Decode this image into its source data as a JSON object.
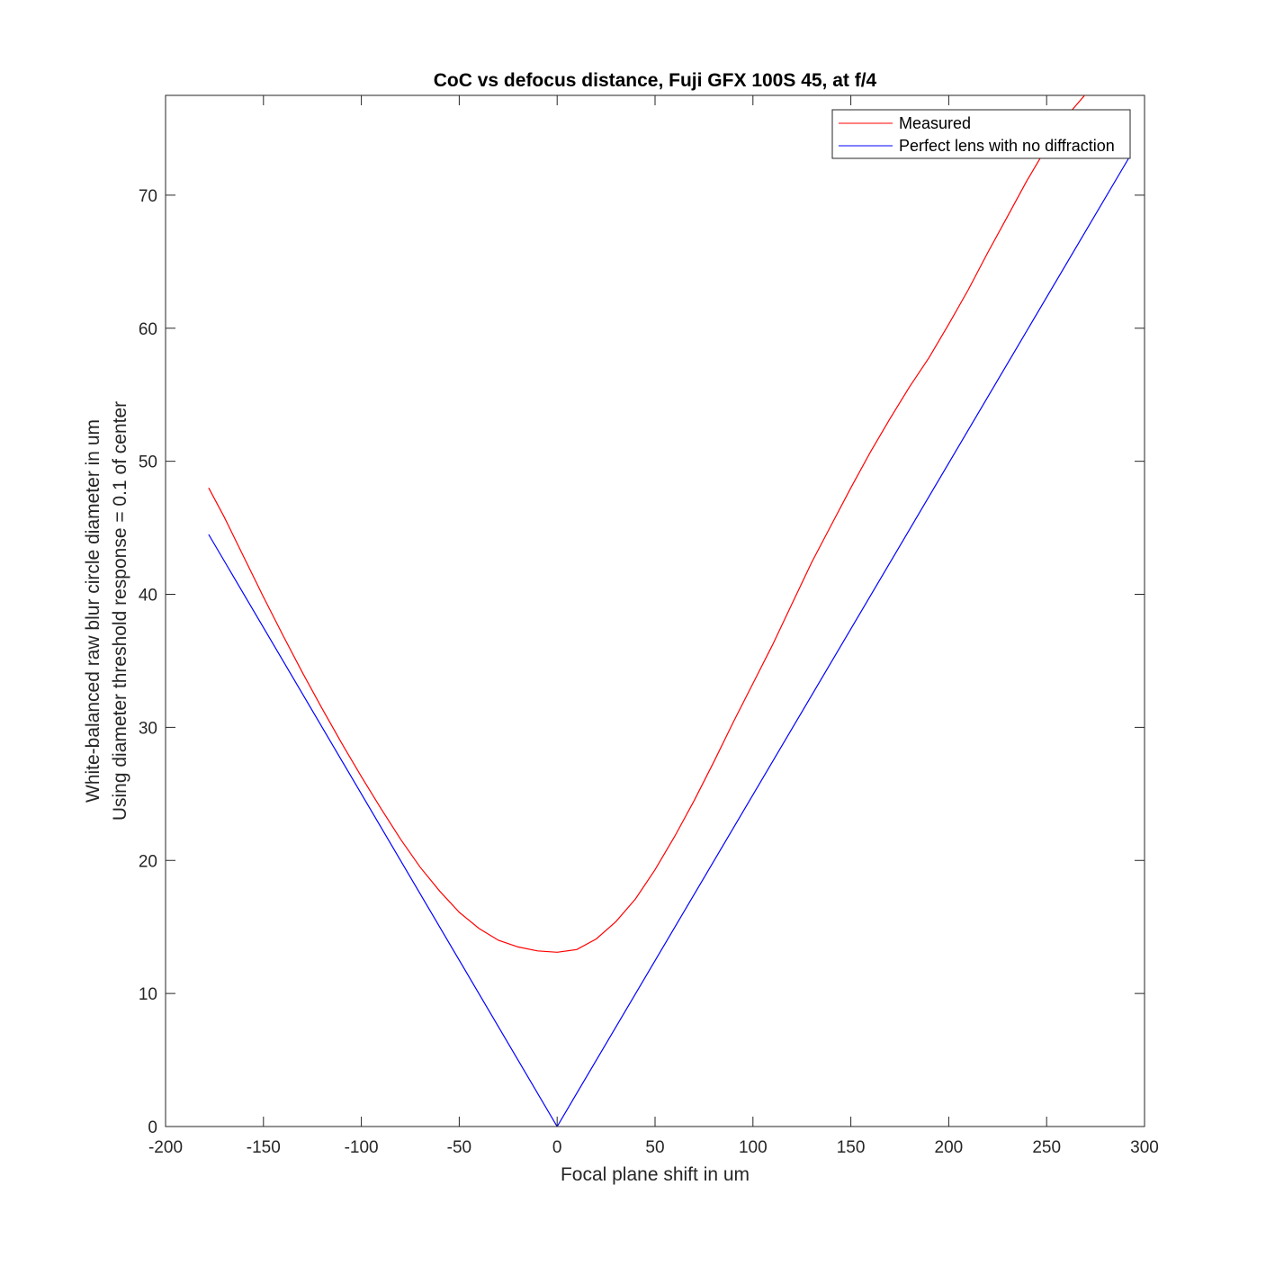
{
  "chart_data": {
    "type": "line",
    "title": "CoC vs defocus distance, Fuji GFX 100S 45, at f/4",
    "xlabel": "Focal plane shift in um",
    "ylabel": [
      "White-balanced raw blur circle diameter in um",
      "Using diameter threshold response = 0.1 of center"
    ],
    "xlim": [
      -200,
      300
    ],
    "ylim": [
      0,
      77.5
    ],
    "xticks": [
      -200,
      -150,
      -100,
      -50,
      0,
      50,
      100,
      150,
      200,
      250,
      300
    ],
    "yticks": [
      0,
      10,
      20,
      30,
      40,
      50,
      60,
      70
    ],
    "xtick_labels": [
      "-200",
      "-150",
      "-100",
      "-50",
      "0",
      "50",
      "100",
      "150",
      "200",
      "250",
      "300"
    ],
    "ytick_labels": [
      "0",
      "10",
      "20",
      "30",
      "40",
      "50",
      "60",
      "70"
    ],
    "legend_position": "top-right",
    "grid": false,
    "series": [
      {
        "name": "Measured",
        "color": "#ff0000",
        "x": [
          -178,
          -170,
          -160,
          -150,
          -140,
          -130,
          -120,
          -110,
          -100,
          -90,
          -80,
          -70,
          -60,
          -50,
          -40,
          -30,
          -20,
          -10,
          0,
          10,
          20,
          30,
          40,
          50,
          60,
          70,
          80,
          90,
          100,
          110,
          120,
          130,
          140,
          150,
          160,
          170,
          180,
          190,
          200,
          210,
          220,
          230,
          240,
          250,
          260,
          270,
          280,
          292
        ],
        "y": [
          48.0,
          45.8,
          42.8,
          39.8,
          36.9,
          34.1,
          31.4,
          28.8,
          26.3,
          23.9,
          21.6,
          19.5,
          17.7,
          16.1,
          14.9,
          14.0,
          13.5,
          13.2,
          13.1,
          13.3,
          14.1,
          15.4,
          17.1,
          19.3,
          21.8,
          24.5,
          27.4,
          30.4,
          33.3,
          36.2,
          39.3,
          42.4,
          45.2,
          48.0,
          50.7,
          53.2,
          55.6,
          57.8,
          60.3,
          62.9,
          65.7,
          68.4,
          71.1,
          73.6,
          75.9,
          77.6,
          77.7,
          77.7
        ]
      },
      {
        "name": "Perfect lens with no diffraction",
        "color": "#0000ff",
        "x": [
          -178,
          0,
          292
        ],
        "y": [
          44.5,
          0,
          72.8
        ]
      }
    ]
  }
}
